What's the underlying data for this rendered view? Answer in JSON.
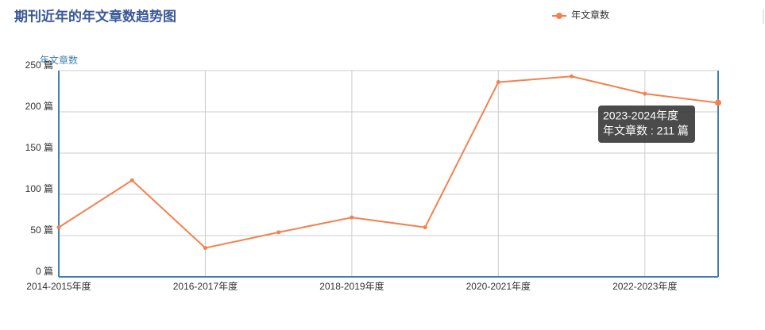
{
  "chart_data": {
    "type": "line",
    "title": "期刊近年的年文章数趋势图",
    "y_axis_name": "年文章数",
    "categories": [
      "2014-2015年度",
      null,
      "2016-2017年度",
      null,
      "2018-2019年度",
      null,
      "2020-2021年度",
      null,
      "2022-2023年度",
      null
    ],
    "series": [
      {
        "name": "年文章数",
        "color": "#f5804e",
        "values": [
          60,
          117,
          35,
          54,
          72,
          60,
          236,
          243,
          222,
          211
        ]
      }
    ],
    "ylim": [
      0,
      250
    ],
    "yticks": [
      {
        "value": 0,
        "label": "0 篇"
      },
      {
        "value": 50,
        "label": "50 篇"
      },
      {
        "value": 100,
        "label": "100 篇"
      },
      {
        "value": 150,
        "label": "150 篇"
      },
      {
        "value": 200,
        "label": "200 篇"
      },
      {
        "value": 250,
        "label": "250 篇"
      }
    ],
    "grid": true,
    "tooltip": {
      "title": "2023-2024年度",
      "text": "年文章数 : 211 篇"
    }
  }
}
